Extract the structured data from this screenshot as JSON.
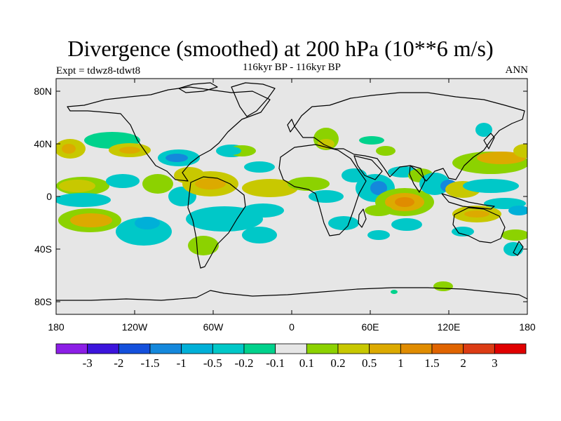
{
  "header": {
    "title": "Divergence (smoothed) at 200 hPa (10**6 m/s)",
    "expt": "Expt = tdwz8-tdwt8",
    "period": "116kyr BP - 116kyr BP",
    "season": "ANN"
  },
  "map": {
    "background_color": "#e6e6e6",
    "lat_labels": [
      "80N",
      "40N",
      "0",
      "40S",
      "80S"
    ],
    "lon_labels": [
      "180",
      "120W",
      "60W",
      "0",
      "60E",
      "120E",
      "180"
    ]
  },
  "colorbar": {
    "colors": [
      "#8c1ee6",
      "#3c14dc",
      "#1450dc",
      "#1488dc",
      "#00b0d8",
      "#00c8c8",
      "#00d28c",
      "#e6e6e6",
      "#8cd200",
      "#c8c800",
      "#dcaa00",
      "#e08c00",
      "#e06400",
      "#dc3c14",
      "#e00000"
    ],
    "labels": [
      "-3",
      "-2",
      "-1.5",
      "-1",
      "-0.5",
      "-0.2",
      "-0.1",
      "0.1",
      "0.2",
      "0.5",
      "1",
      "1.5",
      "2",
      "3"
    ]
  }
}
